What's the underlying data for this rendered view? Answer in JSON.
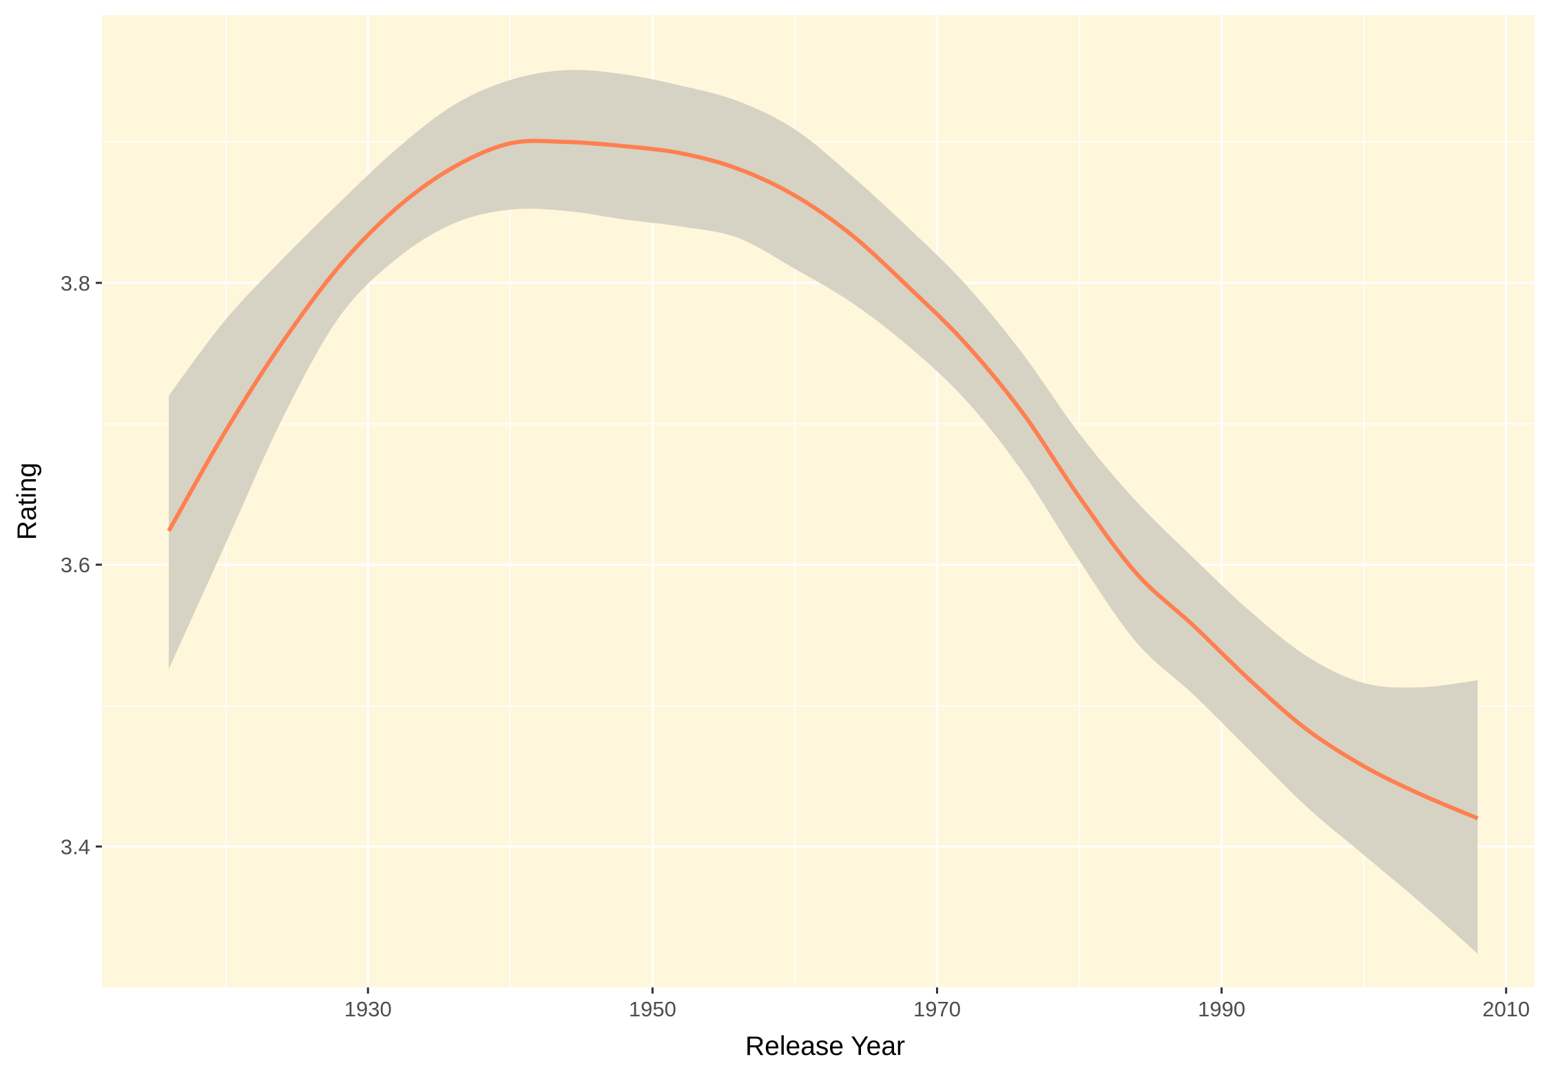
{
  "chart_data": {
    "type": "line",
    "title": "",
    "xlabel": "Release Year",
    "ylabel": "Rating",
    "xlim": [
      1911.3,
      2012.0
    ],
    "ylim": [
      3.3,
      3.99
    ],
    "x_ticks": [
      1930,
      1950,
      1970,
      1990,
      2010
    ],
    "y_ticks": [
      3.4,
      3.6,
      3.8
    ],
    "grid": true,
    "legend": "none",
    "panel_background": "#fff7dc",
    "grid_color": "#ffffff",
    "line_color": "#ff7f50",
    "band_color": "#d6d3c4",
    "series": [
      {
        "values_x": [
          1916,
          1920,
          1924,
          1928,
          1932,
          1936,
          1940,
          1944,
          1948,
          1952,
          1956,
          1960,
          1964,
          1968,
          1972,
          1976,
          1980,
          1984,
          1988,
          1992,
          1996,
          2000,
          2004,
          2008
        ],
        "values_y": [
          3.624,
          3.695,
          3.758,
          3.812,
          3.853,
          3.882,
          3.899,
          3.9,
          3.897,
          3.892,
          3.881,
          3.862,
          3.834,
          3.797,
          3.757,
          3.708,
          3.648,
          3.594,
          3.557,
          3.518,
          3.483,
          3.457,
          3.437,
          3.42
        ],
        "ci_lower": [
          3.526,
          3.615,
          3.704,
          3.776,
          3.817,
          3.842,
          3.852,
          3.851,
          3.845,
          3.84,
          3.832,
          3.81,
          3.786,
          3.755,
          3.717,
          3.666,
          3.603,
          3.545,
          3.508,
          3.468,
          3.428,
          3.394,
          3.36,
          3.324
        ],
        "ci_upper": [
          3.72,
          3.774,
          3.817,
          3.857,
          3.895,
          3.926,
          3.944,
          3.951,
          3.948,
          3.94,
          3.929,
          3.909,
          3.876,
          3.839,
          3.799,
          3.75,
          3.693,
          3.645,
          3.605,
          3.567,
          3.535,
          3.516,
          3.513,
          3.518
        ]
      }
    ]
  }
}
